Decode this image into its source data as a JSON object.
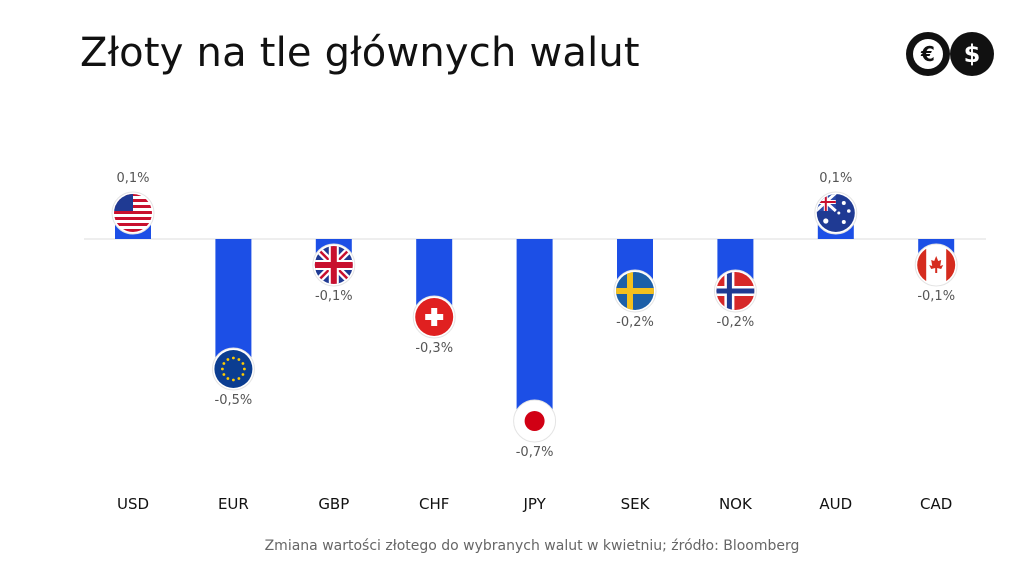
{
  "title": "Złoty na tle głównych walut",
  "caption": "Zmiana wartości złotego do wybranych walut w kwietniu; źródło: Bloomberg",
  "logo": {
    "icons": [
      "euro-icon",
      "dollar-icon"
    ],
    "euro_glyph": "€",
    "dollar_glyph": "$"
  },
  "colors": {
    "bar": "#1c4fe6",
    "baseline": "#dddddd",
    "label": "#555555",
    "category": "#111111"
  },
  "chart_data": {
    "type": "bar",
    "categories": [
      "USD",
      "EUR",
      "GBP",
      "CHF",
      "JPY",
      "SEK",
      "NOK",
      "AUD",
      "CAD"
    ],
    "values": [
      0.1,
      -0.5,
      -0.1,
      -0.3,
      -0.7,
      -0.2,
      -0.2,
      0.1,
      -0.1
    ],
    "value_labels": [
      "0,1%",
      "-0,5%",
      "-0,1%",
      "-0,3%",
      "-0,7%",
      "-0,2%",
      "-0,2%",
      "0,1%",
      "-0,1%"
    ],
    "flags": [
      "us-flag-icon",
      "eu-flag-icon",
      "uk-flag-icon",
      "swiss-flag-icon",
      "japan-flag-icon",
      "sweden-flag-icon",
      "norway-flag-icon",
      "australia-flag-icon",
      "canada-flag-icon"
    ],
    "unit": "%",
    "grid": false,
    "legend": "none"
  }
}
